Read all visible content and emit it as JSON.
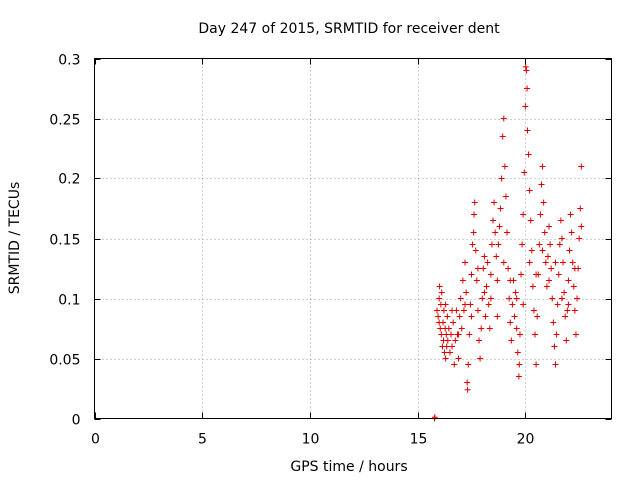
{
  "chart_data": {
    "type": "scatter",
    "title": "Day 247 of 2015, SRMTID for receiver dent",
    "xlabel": "GPS time / hours",
    "ylabel": "SRMTID / TECUs",
    "xlim": [
      0,
      24
    ],
    "ylim": [
      0,
      0.3
    ],
    "x_ticks": [
      0,
      5,
      10,
      15,
      20
    ],
    "x_tick_labels": [
      "0",
      "5",
      "10",
      "15",
      "20"
    ],
    "y_ticks": [
      0,
      0.05,
      0.1,
      0.15,
      0.2,
      0.25,
      0.3
    ],
    "y_tick_labels": [
      "0",
      "0.05",
      "0.1",
      "0.15",
      "0.2",
      "0.25",
      "0.3"
    ],
    "grid": true,
    "marker": "plus",
    "color": "#e00000",
    "series": [
      {
        "name": "SRMTID",
        "points": [
          [
            15.78,
            0.0
          ],
          [
            15.8,
            0.001
          ],
          [
            15.9,
            0.09
          ],
          [
            15.95,
            0.085
          ],
          [
            16.0,
            0.1
          ],
          [
            16.02,
            0.11
          ],
          [
            16.05,
            0.075
          ],
          [
            16.08,
            0.095
          ],
          [
            16.1,
            0.07
          ],
          [
            16.12,
            0.105
          ],
          [
            16.15,
            0.06
          ],
          [
            16.18,
            0.08
          ],
          [
            16.2,
            0.065
          ],
          [
            16.22,
            0.09
          ],
          [
            16.25,
            0.055
          ],
          [
            16.28,
            0.075
          ],
          [
            16.3,
            0.05
          ],
          [
            16.33,
            0.07
          ],
          [
            16.35,
            0.06
          ],
          [
            16.38,
            0.085
          ],
          [
            16.4,
            0.065
          ],
          [
            16.45,
            0.075
          ],
          [
            16.5,
            0.055
          ],
          [
            16.55,
            0.07
          ],
          [
            16.6,
            0.06
          ],
          [
            16.65,
            0.08
          ],
          [
            16.7,
            0.045
          ],
          [
            16.75,
            0.065
          ],
          [
            16.8,
            0.09
          ],
          [
            16.85,
            0.07
          ],
          [
            16.9,
            0.05
          ],
          [
            16.95,
            0.085
          ],
          [
            17.0,
            0.1
          ],
          [
            17.05,
            0.075
          ],
          [
            17.1,
            0.115
          ],
          [
            17.15,
            0.09
          ],
          [
            17.2,
            0.13
          ],
          [
            17.25,
            0.105
          ],
          [
            17.3,
            0.03
          ],
          [
            17.32,
            0.024
          ],
          [
            17.35,
            0.045
          ],
          [
            17.4,
            0.07
          ],
          [
            17.45,
            0.095
          ],
          [
            17.5,
            0.12
          ],
          [
            17.55,
            0.145
          ],
          [
            17.6,
            0.155
          ],
          [
            17.62,
            0.17
          ],
          [
            17.65,
            0.18
          ],
          [
            17.7,
            0.14
          ],
          [
            17.75,
            0.115
          ],
          [
            17.8,
            0.09
          ],
          [
            17.85,
            0.065
          ],
          [
            17.9,
            0.05
          ],
          [
            17.95,
            0.075
          ],
          [
            18.0,
            0.1
          ],
          [
            18.05,
            0.125
          ],
          [
            18.1,
            0.105
          ],
          [
            18.15,
            0.085
          ],
          [
            18.2,
            0.11
          ],
          [
            18.25,
            0.13
          ],
          [
            18.3,
            0.095
          ],
          [
            18.35,
            0.075
          ],
          [
            18.4,
            0.12
          ],
          [
            18.45,
            0.145
          ],
          [
            18.5,
            0.165
          ],
          [
            18.55,
            0.18
          ],
          [
            18.6,
            0.155
          ],
          [
            18.65,
            0.135
          ],
          [
            18.7,
            0.115
          ],
          [
            18.75,
            0.145
          ],
          [
            18.8,
            0.16
          ],
          [
            18.85,
            0.175
          ],
          [
            18.9,
            0.2
          ],
          [
            18.95,
            0.235
          ],
          [
            19.0,
            0.25
          ],
          [
            19.05,
            0.21
          ],
          [
            19.1,
            0.185
          ],
          [
            19.15,
            0.155
          ],
          [
            19.2,
            0.125
          ],
          [
            19.25,
            0.1
          ],
          [
            19.3,
            0.08
          ],
          [
            19.35,
            0.065
          ],
          [
            19.4,
            0.095
          ],
          [
            19.45,
            0.115
          ],
          [
            19.5,
            0.085
          ],
          [
            19.55,
            0.105
          ],
          [
            19.6,
            0.075
          ],
          [
            19.65,
            0.055
          ],
          [
            19.7,
            0.035
          ],
          [
            19.72,
            0.045
          ],
          [
            19.75,
            0.07
          ],
          [
            19.8,
            0.12
          ],
          [
            19.85,
            0.145
          ],
          [
            19.9,
            0.17
          ],
          [
            19.95,
            0.205
          ],
          [
            20.0,
            0.26
          ],
          [
            20.02,
            0.293
          ],
          [
            20.05,
            0.29
          ],
          [
            20.08,
            0.275
          ],
          [
            20.1,
            0.24
          ],
          [
            20.15,
            0.22
          ],
          [
            20.2,
            0.19
          ],
          [
            20.25,
            0.165
          ],
          [
            20.3,
            0.14
          ],
          [
            20.35,
            0.11
          ],
          [
            20.4,
            0.09
          ],
          [
            20.45,
            0.07
          ],
          [
            20.5,
            0.045
          ],
          [
            20.55,
            0.085
          ],
          [
            20.6,
            0.12
          ],
          [
            20.65,
            0.145
          ],
          [
            20.7,
            0.17
          ],
          [
            20.75,
            0.195
          ],
          [
            20.8,
            0.21
          ],
          [
            20.85,
            0.18
          ],
          [
            20.9,
            0.155
          ],
          [
            20.95,
            0.13
          ],
          [
            21.0,
            0.11
          ],
          [
            21.05,
            0.135
          ],
          [
            21.1,
            0.16
          ],
          [
            21.15,
            0.145
          ],
          [
            21.2,
            0.125
          ],
          [
            21.25,
            0.1
          ],
          [
            21.3,
            0.08
          ],
          [
            21.35,
            0.06
          ],
          [
            21.4,
            0.045
          ],
          [
            21.45,
            0.07
          ],
          [
            21.5,
            0.095
          ],
          [
            21.55,
            0.12
          ],
          [
            21.6,
            0.145
          ],
          [
            21.65,
            0.165
          ],
          [
            21.7,
            0.15
          ],
          [
            21.75,
            0.13
          ],
          [
            21.8,
            0.105
          ],
          [
            21.85,
            0.085
          ],
          [
            21.9,
            0.065
          ],
          [
            21.95,
            0.09
          ],
          [
            22.0,
            0.115
          ],
          [
            22.05,
            0.14
          ],
          [
            22.1,
            0.17
          ],
          [
            22.15,
            0.155
          ],
          [
            22.2,
            0.13
          ],
          [
            22.25,
            0.11
          ],
          [
            22.3,
            0.09
          ],
          [
            22.35,
            0.07
          ],
          [
            22.4,
            0.1
          ],
          [
            22.45,
            0.125
          ],
          [
            22.5,
            0.15
          ],
          [
            22.55,
            0.175
          ],
          [
            22.6,
            0.21
          ],
          [
            16.0,
            0.08
          ],
          [
            16.3,
            0.095
          ],
          [
            16.6,
            0.09
          ],
          [
            16.9,
            0.07
          ],
          [
            17.2,
            0.095
          ],
          [
            17.5,
            0.085
          ],
          [
            17.8,
            0.125
          ],
          [
            18.1,
            0.135
          ],
          [
            18.4,
            0.1
          ],
          [
            18.7,
            0.085
          ],
          [
            19.0,
            0.13
          ],
          [
            19.3,
            0.115
          ],
          [
            19.6,
            0.1
          ],
          [
            19.9,
            0.095
          ],
          [
            20.2,
            0.13
          ],
          [
            20.5,
            0.12
          ],
          [
            20.8,
            0.14
          ],
          [
            21.1,
            0.115
          ],
          [
            21.4,
            0.13
          ],
          [
            21.7,
            0.1
          ],
          [
            22.0,
            0.095
          ],
          [
            22.3,
            0.125
          ],
          [
            22.6,
            0.16
          ]
        ]
      }
    ]
  }
}
